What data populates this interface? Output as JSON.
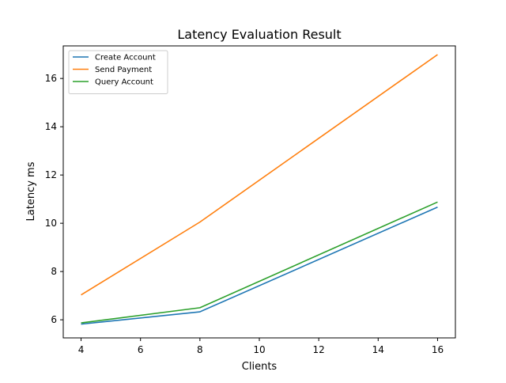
{
  "chart_data": {
    "type": "line",
    "title": "Latency Evaluation Result",
    "xlabel": "Clients",
    "ylabel": "Latency ms",
    "x": [
      4,
      8,
      16
    ],
    "xlim": [
      3.4,
      16.6
    ],
    "ylim": [
      5.25,
      17.35
    ],
    "xticks": [
      4,
      6,
      8,
      10,
      12,
      14,
      16
    ],
    "yticks": [
      6,
      8,
      10,
      12,
      14,
      16
    ],
    "grid": false,
    "legend_position": "top-left",
    "series": [
      {
        "name": "Create Account",
        "color": "#1f77b4",
        "values": [
          5.82,
          6.33,
          10.67
        ]
      },
      {
        "name": "Send Payment",
        "color": "#ff7f0e",
        "values": [
          7.03,
          10.05,
          16.99
        ]
      },
      {
        "name": "Query Account",
        "color": "#2ca02c",
        "values": [
          5.87,
          6.5,
          10.88
        ]
      }
    ]
  }
}
